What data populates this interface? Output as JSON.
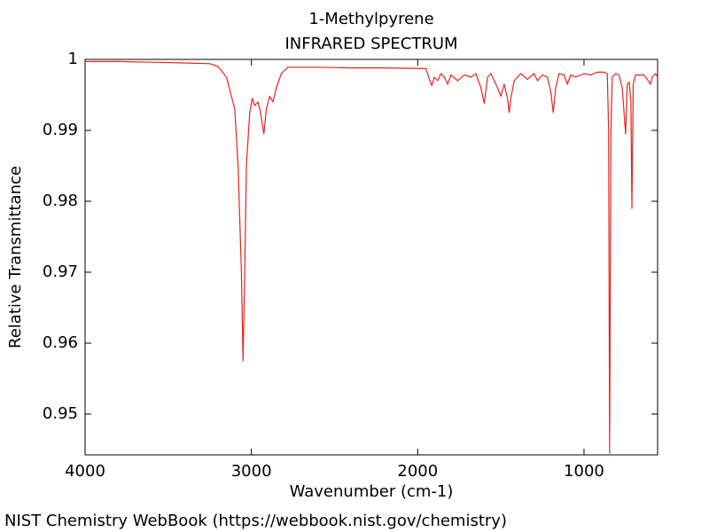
{
  "chart_data": {
    "type": "line",
    "title": "1-Methylpyrene",
    "subtitle": "INFRARED SPECTRUM",
    "xlabel": "Wavenumber (cm-1)",
    "ylabel": "Relative Transmittance",
    "footer": "NIST Chemistry WebBook (https://webbook.nist.gov/chemistry)",
    "xlim": [
      4000,
      557.5
    ],
    "ylim": [
      0.94425,
      1
    ],
    "xticks": [
      4000,
      3000,
      2000,
      1000
    ],
    "yticks": [
      0.95,
      0.96,
      0.97,
      0.98,
      0.99,
      1
    ],
    "grid": false,
    "x": [
      4000,
      3800,
      3600,
      3400,
      3250,
      3200,
      3150,
      3100,
      3080,
      3060,
      3050,
      3040,
      3030,
      3010,
      2995,
      2980,
      2960,
      2945,
      2925,
      2910,
      2890,
      2870,
      2850,
      2820,
      2780,
      2600,
      2400,
      2200,
      1950,
      1930,
      1915,
      1900,
      1880,
      1860,
      1840,
      1820,
      1800,
      1760,
      1720,
      1680,
      1650,
      1620,
      1600,
      1580,
      1560,
      1520,
      1500,
      1480,
      1460,
      1450,
      1440,
      1420,
      1380,
      1340,
      1300,
      1280,
      1250,
      1220,
      1200,
      1185,
      1170,
      1150,
      1120,
      1100,
      1080,
      1050,
      1000,
      960,
      920,
      880,
      860,
      852,
      846,
      838,
      830,
      810,
      790,
      770,
      750,
      740,
      728,
      718,
      712,
      704,
      690,
      640,
      620,
      600,
      590,
      570,
      558
    ],
    "series": [
      {
        "name": "1-Methylpyrene",
        "color": "#e8231a",
        "values": [
          0.9997,
          0.9997,
          0.9996,
          0.9995,
          0.9994,
          0.999,
          0.9975,
          0.993,
          0.985,
          0.97,
          0.9575,
          0.97,
          0.985,
          0.9925,
          0.9945,
          0.9935,
          0.994,
          0.9925,
          0.9895,
          0.993,
          0.9948,
          0.994,
          0.996,
          0.998,
          0.9989,
          0.9989,
          0.9988,
          0.9988,
          0.9987,
          0.9972,
          0.9963,
          0.9975,
          0.997,
          0.998,
          0.9975,
          0.9965,
          0.9978,
          0.997,
          0.9978,
          0.9975,
          0.998,
          0.996,
          0.9938,
          0.9975,
          0.998,
          0.996,
          0.9948,
          0.9965,
          0.9945,
          0.9925,
          0.9945,
          0.997,
          0.998,
          0.9972,
          0.998,
          0.997,
          0.9978,
          0.9975,
          0.9955,
          0.9925,
          0.996,
          0.998,
          0.9978,
          0.9965,
          0.9978,
          0.9975,
          0.998,
          0.9978,
          0.9982,
          0.9982,
          0.998,
          0.99,
          0.9445,
          0.99,
          0.9975,
          0.998,
          0.9978,
          0.996,
          0.9895,
          0.9965,
          0.9968,
          0.994,
          0.979,
          0.9965,
          0.9978,
          0.9978,
          0.9972,
          0.9965,
          0.9975,
          0.998,
          0.9975
        ]
      }
    ]
  }
}
